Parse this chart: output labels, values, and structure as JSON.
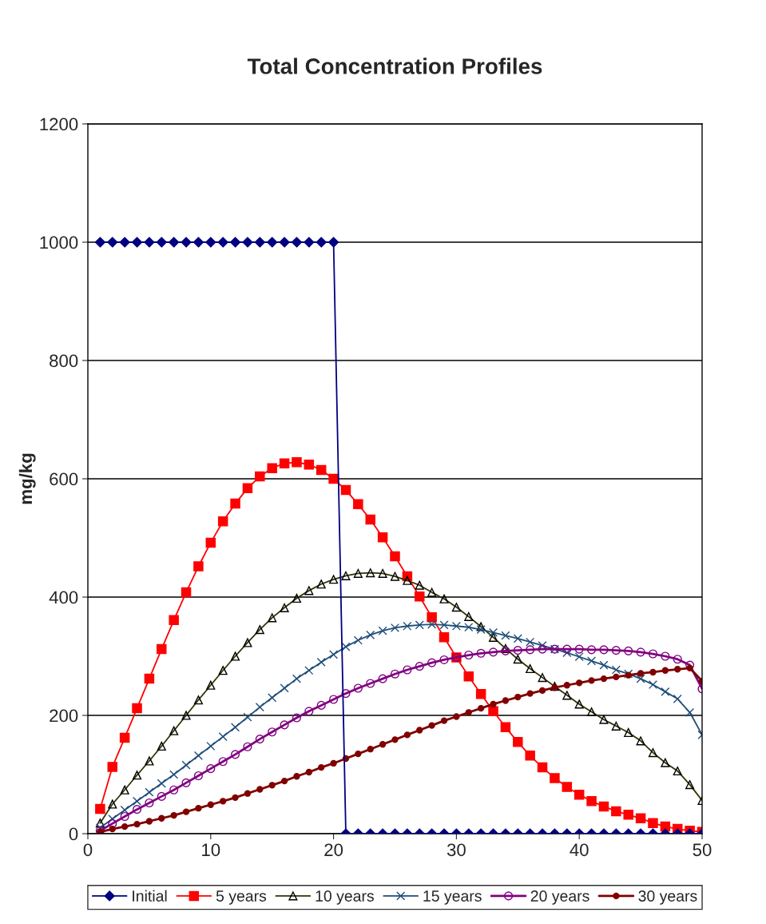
{
  "chart_data": {
    "type": "line",
    "title": "Total Concentration Profiles",
    "ylabel": "mg/kg",
    "x": [
      1,
      2,
      3,
      4,
      5,
      6,
      7,
      8,
      9,
      10,
      11,
      12,
      13,
      14,
      15,
      16,
      17,
      18,
      19,
      20,
      21,
      22,
      23,
      24,
      25,
      26,
      27,
      28,
      29,
      30,
      31,
      32,
      33,
      34,
      35,
      36,
      37,
      38,
      39,
      40,
      41,
      42,
      43,
      44,
      45,
      46,
      47,
      48,
      49,
      50
    ],
    "xlim": [
      0,
      50
    ],
    "xticks": [
      0,
      10,
      20,
      30,
      40,
      50
    ],
    "ylim": [
      0,
      1200
    ],
    "yticks": [
      0,
      200,
      400,
      600,
      800,
      1000,
      1200
    ],
    "grid": "y",
    "legend": "bottom",
    "series": [
      {
        "name": "Initial",
        "color": "#000080",
        "marker": "diamond",
        "values": [
          1000,
          1000,
          1000,
          1000,
          1000,
          1000,
          1000,
          1000,
          1000,
          1000,
          1000,
          1000,
          1000,
          1000,
          1000,
          1000,
          1000,
          1000,
          1000,
          1000,
          0,
          0,
          0,
          0,
          0,
          0,
          0,
          0,
          0,
          0,
          0,
          0,
          0,
          0,
          0,
          0,
          0,
          0,
          0,
          0,
          0,
          0,
          0,
          0,
          0,
          0,
          0,
          0,
          0,
          0
        ]
      },
      {
        "name": "5 years",
        "color": "#ff0000",
        "marker": "square",
        "values": [
          42,
          113,
          162,
          212,
          262,
          312,
          361,
          408,
          452,
          492,
          528,
          558,
          584,
          604,
          618,
          626,
          628,
          624,
          615,
          600,
          581,
          557,
          531,
          501,
          469,
          435,
          401,
          366,
          332,
          298,
          266,
          236,
          207,
          180,
          155,
          132,
          112,
          94,
          79,
          66,
          55,
          46,
          38,
          32,
          26,
          18,
          12,
          8,
          5,
          3
        ]
      },
      {
        "name": "10 years",
        "color": "#333300",
        "marker": "triangle",
        "values": [
          18,
          50,
          74,
          99,
          123,
          148,
          174,
          200,
          226,
          251,
          276,
          300,
          323,
          345,
          365,
          382,
          398,
          411,
          422,
          430,
          436,
          440,
          441,
          440,
          435,
          428,
          420,
          408,
          397,
          383,
          367,
          350,
          332,
          313,
          295,
          279,
          264,
          249,
          234,
          219,
          206,
          193,
          182,
          171,
          157,
          137,
          120,
          106,
          83,
          56
        ]
      },
      {
        "name": "15 years",
        "color": "#1f4e79",
        "marker": "cross",
        "values": [
          10,
          25,
          40,
          55,
          70,
          85,
          100,
          116,
          132,
          148,
          164,
          180,
          197,
          214,
          230,
          246,
          262,
          276,
          290,
          303,
          316,
          327,
          336,
          343,
          348,
          351,
          353,
          354,
          353,
          351,
          349,
          345,
          340,
          335,
          330,
          324,
          318,
          312,
          306,
          299,
          292,
          285,
          277,
          270,
          262,
          252,
          240,
          228,
          205,
          167
        ]
      },
      {
        "name": "20 years",
        "color": "#800080",
        "marker": "circle",
        "values": [
          5,
          17,
          29,
          41,
          52,
          63,
          74,
          86,
          98,
          110,
          122,
          134,
          147,
          160,
          172,
          184,
          196,
          207,
          217,
          227,
          237,
          246,
          254,
          262,
          270,
          277,
          283,
          289,
          294,
          298,
          302,
          305,
          307,
          309,
          310,
          311,
          312,
          312,
          312,
          312,
          311,
          311,
          310,
          309,
          307,
          304,
          300,
          295,
          285,
          245
        ]
      },
      {
        "name": "30 years",
        "color": "#800000",
        "marker": "circle",
        "values": [
          3,
          8,
          12,
          16,
          21,
          26,
          31,
          37,
          43,
          49,
          55,
          61,
          68,
          75,
          82,
          89,
          97,
          104,
          112,
          119,
          127,
          135,
          143,
          151,
          159,
          167,
          175,
          183,
          191,
          198,
          205,
          212,
          219,
          225,
          231,
          237,
          242,
          247,
          251,
          255,
          259,
          262,
          265,
          268,
          271,
          273,
          276,
          278,
          280,
          258
        ]
      }
    ]
  }
}
